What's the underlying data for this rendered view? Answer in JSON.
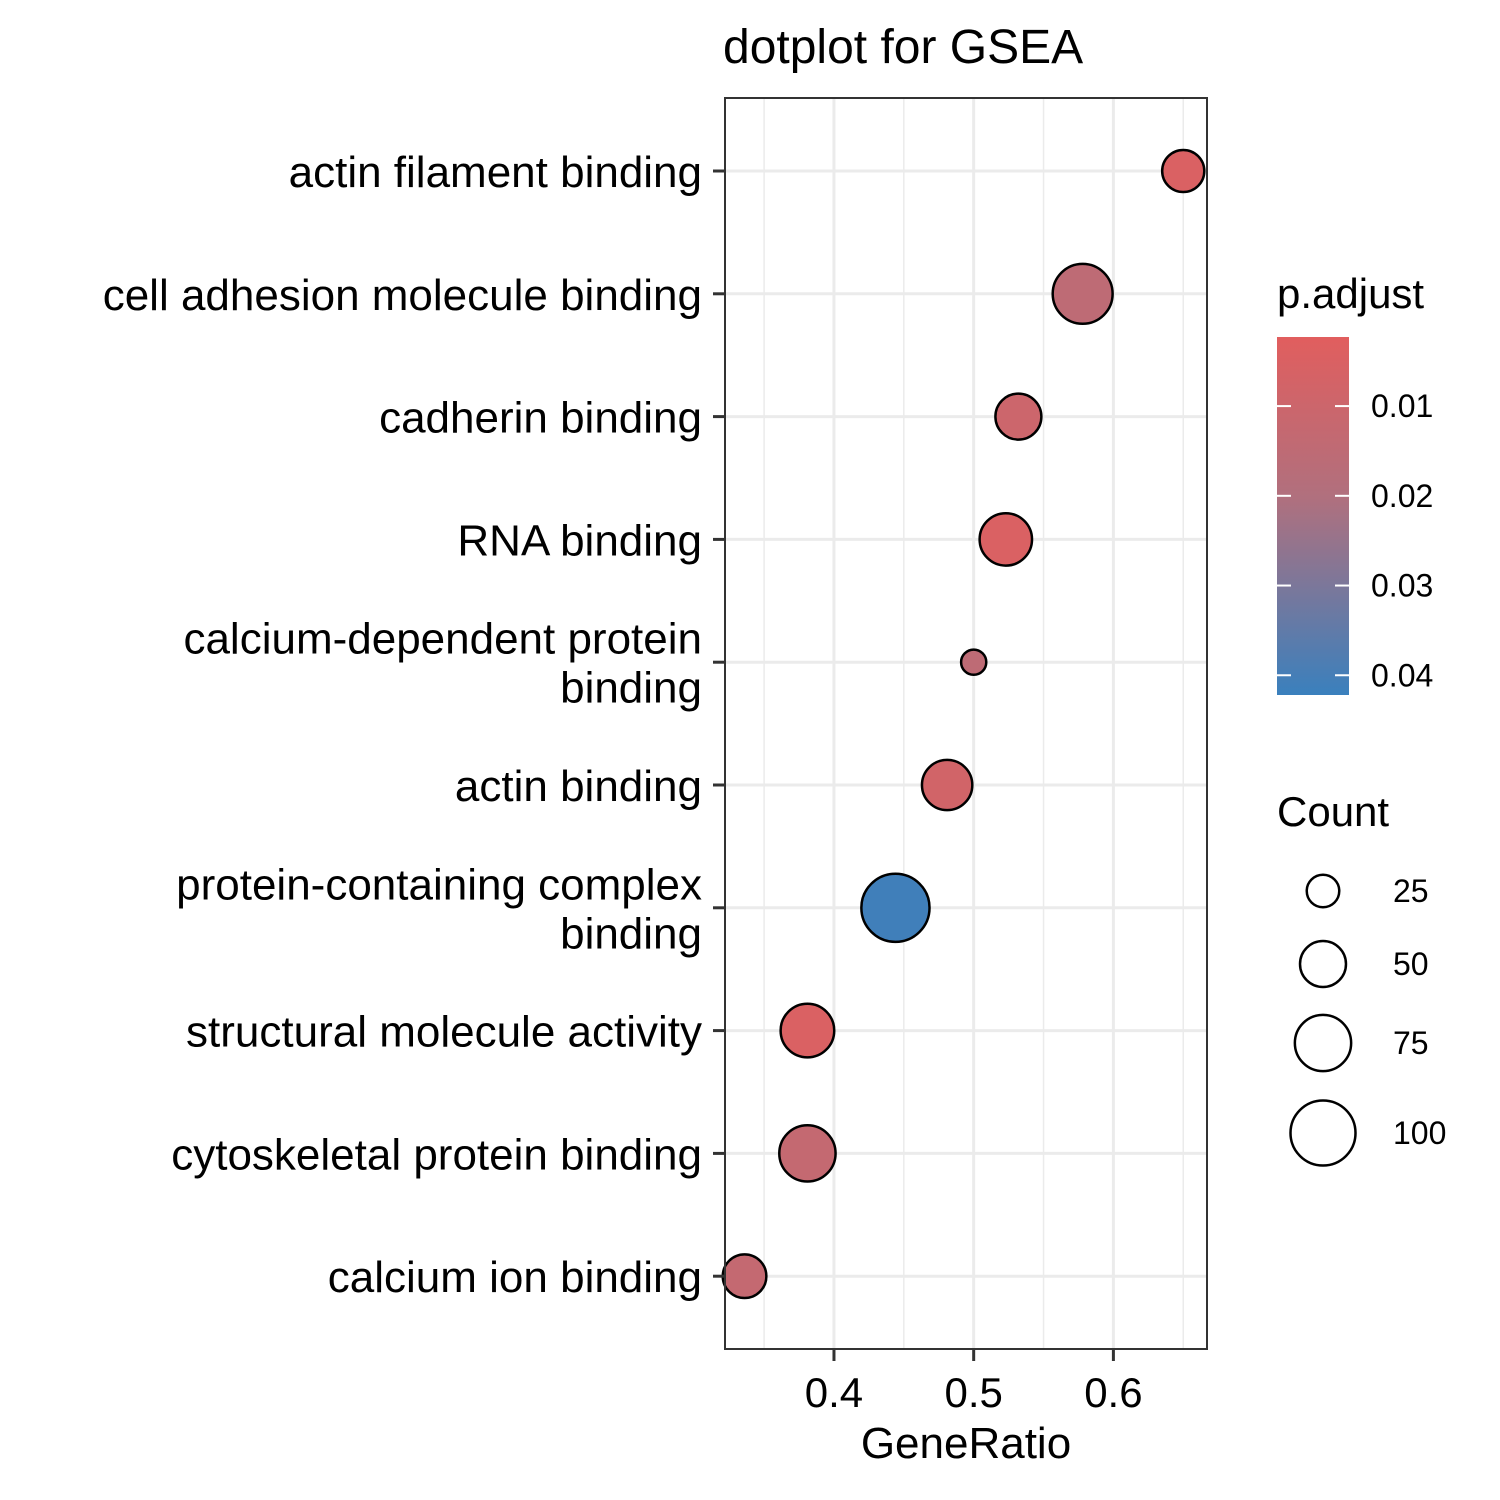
{
  "chart_data": {
    "type": "scatter",
    "title": "dotplot for GSEA",
    "xlabel": "GeneRatio",
    "ylabel": "",
    "xlim": [
      0.322,
      0.667
    ],
    "xticks": [
      0.4,
      0.5,
      0.6
    ],
    "xtick_labels": [
      "0.4",
      "0.5",
      "0.6"
    ],
    "grid": true,
    "categories": [
      {
        "label_lines": [
          "actin filament binding"
        ],
        "x": 0.65,
        "count": 42,
        "p_adjust": 0.005
      },
      {
        "label_lines": [
          "cell adhesion molecule binding"
        ],
        "x": 0.578,
        "count": 85,
        "p_adjust": 0.015
      },
      {
        "label_lines": [
          "cadherin binding"
        ],
        "x": 0.532,
        "count": 50,
        "p_adjust": 0.01
      },
      {
        "label_lines": [
          "RNA binding"
        ],
        "x": 0.523,
        "count": 65,
        "p_adjust": 0.005
      },
      {
        "label_lines": [
          "calcium-dependent protein",
          "binding"
        ],
        "x": 0.5,
        "count": 15,
        "p_adjust": 0.015
      },
      {
        "label_lines": [
          "actin binding"
        ],
        "x": 0.481,
        "count": 60,
        "p_adjust": 0.008
      },
      {
        "label_lines": [
          "protein-containing complex",
          "binding"
        ],
        "x": 0.444,
        "count": 110,
        "p_adjust": 0.041
      },
      {
        "label_lines": [
          "structural molecule activity"
        ],
        "x": 0.381,
        "count": 68,
        "p_adjust": 0.005
      },
      {
        "label_lines": [
          "cytoskeletal protein binding"
        ],
        "x": 0.381,
        "count": 75,
        "p_adjust": 0.013
      },
      {
        "label_lines": [
          "calcium ion binding"
        ],
        "x": 0.336,
        "count": 45,
        "p_adjust": 0.013
      }
    ],
    "legend": {
      "placement": "right",
      "color": {
        "title": "p.adjust",
        "ticks": [
          0.01,
          0.02,
          0.03,
          0.04
        ],
        "tick_labels": [
          "0.01",
          "0.02",
          "0.03",
          "0.04"
        ],
        "range": [
          0.0023,
          0.0422
        ],
        "low_color": "#E15E5E",
        "high_color": "#3A80BD"
      },
      "size": {
        "title": "Count",
        "values": [
          25,
          50,
          75,
          100
        ],
        "labels": [
          "25",
          "50",
          "75",
          "100"
        ]
      }
    },
    "colors": {
      "point_outline": "#000000",
      "grid": "#EBEBEB",
      "panel_border": "#333333"
    }
  }
}
